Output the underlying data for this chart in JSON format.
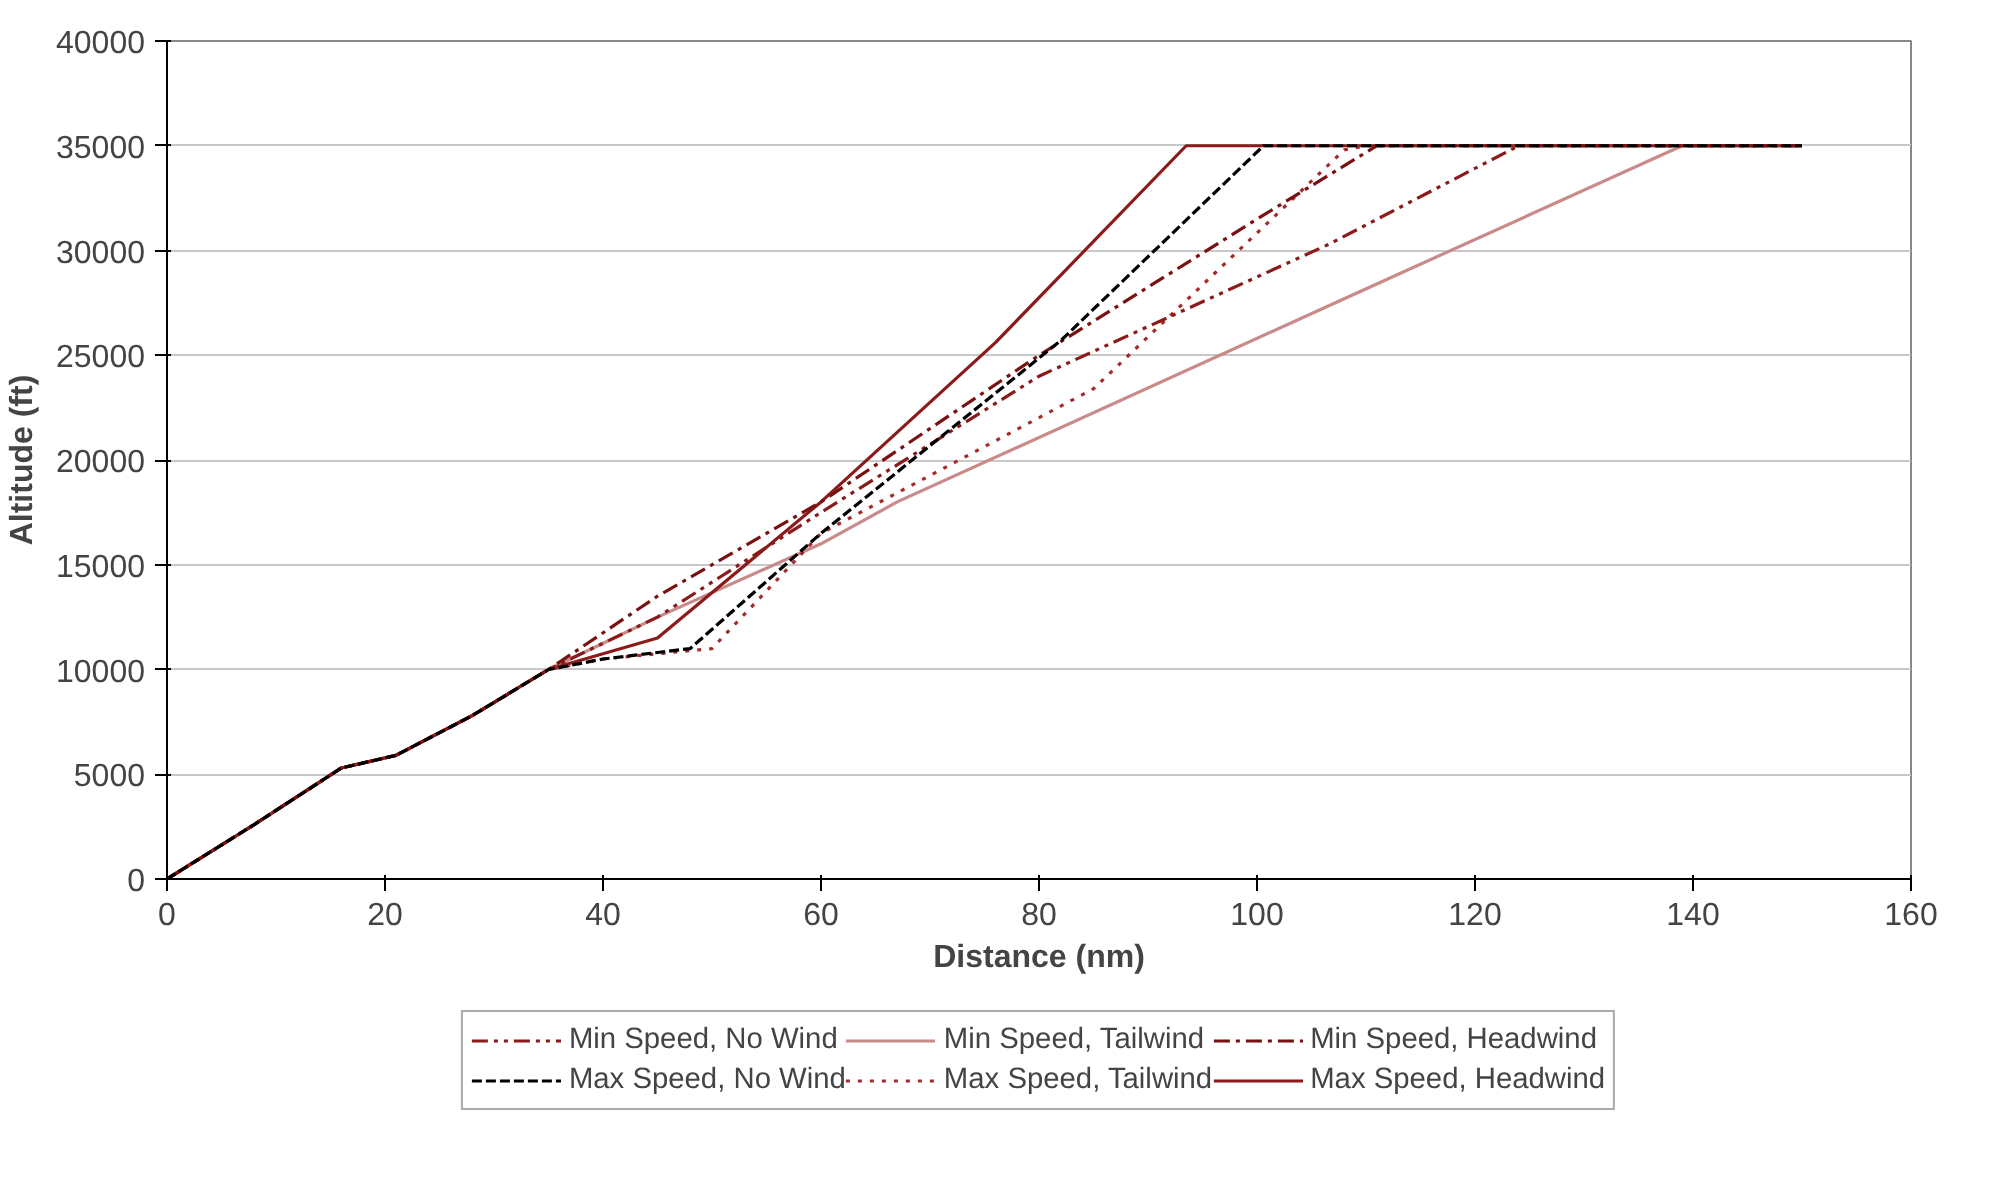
{
  "chart_data": {
    "type": "line",
    "xlabel": "Distance (nm)",
    "ylabel": "Altitude (ft)",
    "xlim": [
      0,
      160
    ],
    "xticks": [
      0,
      20,
      40,
      60,
      80,
      100,
      120,
      140,
      160
    ],
    "ylim": [
      0,
      40000
    ],
    "yticks": [
      0,
      5000,
      10000,
      15000,
      20000,
      25000,
      30000,
      35000,
      40000
    ],
    "grid": "y",
    "legend": "bottom",
    "marker": "none",
    "series": [
      {
        "name": "Min Speed, No Wind",
        "color": "#8b1a1a",
        "line_style": "dashdotdot",
        "x": [
          0,
          8,
          16,
          21,
          28,
          35,
          45,
          60,
          80,
          106.6,
          124,
          150
        ],
        "values": [
          0,
          2600,
          5300,
          5900,
          7800,
          10000,
          12500,
          17500,
          24000,
          30300,
          35000,
          35000
        ]
      },
      {
        "name": "Min Speed, Tailwind",
        "color": "#c98a8a",
        "line_style": "solid",
        "x": [
          0,
          8,
          16,
          21,
          28,
          35,
          45,
          60,
          67,
          108,
          139,
          150
        ],
        "values": [
          0,
          2600,
          5300,
          5900,
          7800,
          10000,
          12500,
          16000,
          18000,
          27700,
          35000,
          35000
        ]
      },
      {
        "name": "Min Speed, Headwind",
        "color": "#7a1010",
        "line_style": "dashdot",
        "x": [
          0,
          8,
          16,
          21,
          28,
          35,
          45,
          60,
          80,
          100,
          111,
          150
        ],
        "values": [
          0,
          2600,
          5300,
          5900,
          7800,
          10000,
          13500,
          18000,
          25000,
          31500,
          35000,
          35000
        ]
      },
      {
        "name": "Max Speed, No Wind",
        "color": "#000000",
        "line_style": "dashed",
        "x": [
          0,
          8,
          16,
          21,
          28,
          35,
          40,
          48,
          60,
          82,
          100.6,
          150
        ],
        "values": [
          0,
          2600,
          5300,
          5900,
          7800,
          10000,
          10500,
          11000,
          16500,
          25700,
          35000,
          35000
        ]
      },
      {
        "name": "Max Speed, Tailwind",
        "color": "#a52a2a",
        "line_style": "dotted",
        "x": [
          0,
          8,
          16,
          21,
          28,
          35,
          40,
          50,
          60,
          85,
          108,
          110,
          150
        ],
        "values": [
          0,
          2600,
          5300,
          5900,
          7800,
          10000,
          10500,
          11000,
          16500,
          23400,
          34800,
          35000,
          35000
        ]
      },
      {
        "name": "Max Speed, Headwind",
        "color": "#8b1a1a",
        "line_style": "solid",
        "x": [
          0,
          8,
          16,
          21,
          28,
          35,
          45,
          60,
          76,
          93.5,
          150
        ],
        "values": [
          0,
          2600,
          5300,
          5900,
          7800,
          10000,
          11500,
          18000,
          25600,
          35000,
          35000
        ]
      }
    ]
  }
}
